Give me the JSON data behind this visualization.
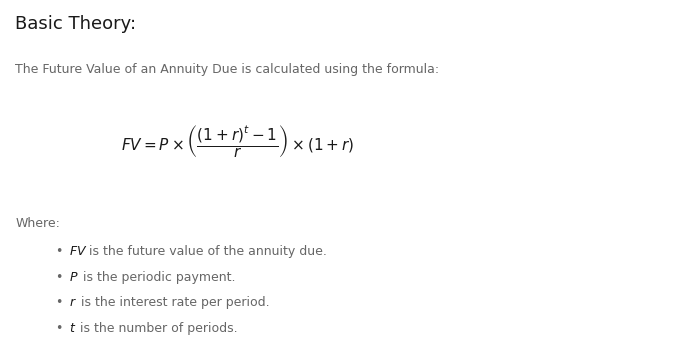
{
  "title": "Basic Theory:",
  "subtitle": "The Future Value of an Annuity Due is calculated using the formula:",
  "where_label": "Where:",
  "bullets": [
    [
      "FV",
      " is the future value of the annuity due."
    ],
    [
      "P",
      " is the periodic payment."
    ],
    [
      "r",
      " is the interest rate per period."
    ],
    [
      "t",
      " is the number of periods."
    ]
  ],
  "bg_color": "#ffffff",
  "title_color": "#1a1a1a",
  "text_color": "#666666",
  "title_fontsize": 13,
  "subtitle_fontsize": 9,
  "formula_fontsize": 11,
  "where_fontsize": 9,
  "bullet_fontsize": 9,
  "fig_width": 6.89,
  "fig_height": 3.42,
  "dpi": 100
}
